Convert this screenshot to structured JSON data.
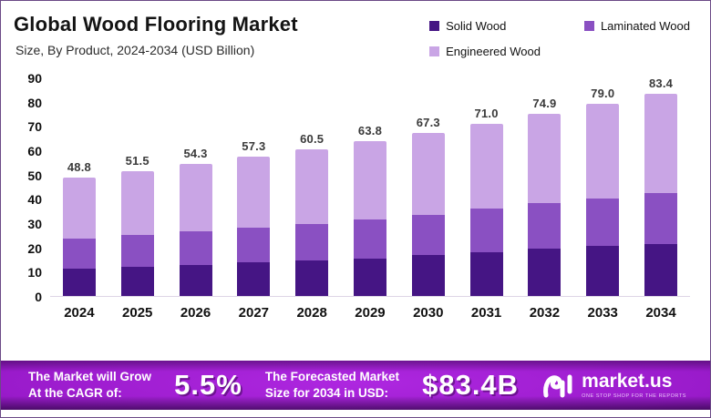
{
  "chart_data": {
    "type": "bar",
    "stacked": true,
    "title": "Global Wood Flooring Market",
    "subtitle": "Size, By Product, 2024-2034 (USD Billion)",
    "categories": [
      "2024",
      "2025",
      "2026",
      "2027",
      "2028",
      "2029",
      "2030",
      "2031",
      "2032",
      "2033",
      "2034"
    ],
    "series": [
      {
        "name": "Solid Wood",
        "color": "#451584",
        "values": [
          11.4,
          12.1,
          12.9,
          13.9,
          14.6,
          15.5,
          16.8,
          18.2,
          19.4,
          20.8,
          21.3
        ]
      },
      {
        "name": "Laminated Wood",
        "color": "#8a50c2",
        "values": [
          12.3,
          13.1,
          13.7,
          14.2,
          15.0,
          15.9,
          16.6,
          18.0,
          18.9,
          19.5,
          21.2
        ]
      },
      {
        "name": "Engineered Wood",
        "color": "#c9a5e5",
        "values": [
          25.1,
          26.3,
          27.7,
          29.2,
          30.9,
          32.4,
          33.9,
          34.8,
          36.6,
          38.7,
          40.9
        ]
      }
    ],
    "totals_labels": [
      "48.8",
      "51.5",
      "54.3",
      "57.3",
      "60.5",
      "63.8",
      "67.3",
      "71.0",
      "74.9",
      "79.0",
      "83.4"
    ],
    "xlabel": "",
    "ylabel": "",
    "ylim": [
      0,
      90
    ],
    "yticks": [
      0,
      10,
      20,
      30,
      40,
      50,
      60,
      70,
      80,
      90
    ],
    "grid": false,
    "legend_position": "top-right"
  },
  "banner": {
    "cagr_label_line1": "The Market will Grow",
    "cagr_label_line2": "At the CAGR of:",
    "cagr_value": "5.5%",
    "forecast_label_line1": "The Forecasted Market",
    "forecast_label_line2": "Size for 2034 in USD:",
    "forecast_value": "$83.4B",
    "logo_text": "market.us",
    "logo_tagline": "One Stop Shop For The Reports"
  },
  "colors": {
    "frame_border": "#6b4a86",
    "banner_center": "#a81fd6",
    "banner_edge": "#32063c",
    "baseline": "#ddd5e6"
  }
}
